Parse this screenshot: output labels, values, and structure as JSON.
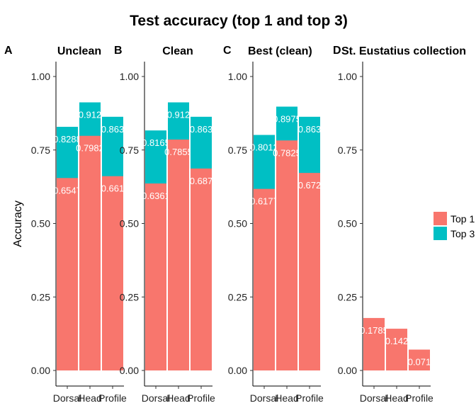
{
  "figure": {
    "title": "Test accuracy (top 1 and top 3)",
    "ylabel": "Accuracy"
  },
  "legend": {
    "entries": [
      {
        "label": "Top 1",
        "color": "#F8766D"
      },
      {
        "label": "Top 3",
        "color": "#00BFC4"
      }
    ]
  },
  "chart_data": [
    {
      "type": "bar",
      "letter": "A",
      "title": "Unclean",
      "categories": [
        "Dorsal",
        "Head",
        "Profile"
      ],
      "series": [
        {
          "name": "Top 1",
          "values": [
            0.6547,
            0.7982,
            0.661
          ],
          "labels": [
            "0.6547",
            "0.7982",
            "0.661"
          ]
        },
        {
          "name": "Top 3",
          "values": [
            0.8288,
            0.912,
            0.863
          ],
          "labels": [
            "0.8288",
            "0.912",
            "0.863"
          ]
        }
      ],
      "ylabel": "Accuracy",
      "ylim": [
        0,
        1.05
      ],
      "yticks": [
        "0.00",
        "0.25",
        "0.50",
        "0.75",
        "1.00"
      ]
    },
    {
      "type": "bar",
      "letter": "B",
      "title": "Clean",
      "categories": [
        "Dorsal",
        "Head",
        "Profile"
      ],
      "series": [
        {
          "name": "Top 1",
          "values": [
            0.6361,
            0.7855,
            0.687
          ],
          "labels": [
            "0.6361",
            "0.7855",
            "0.687"
          ]
        },
        {
          "name": "Top 3",
          "values": [
            0.8165,
            0.912,
            0.863
          ],
          "labels": [
            "0.8165",
            "0.912",
            "0.863"
          ]
        }
      ],
      "ylim": [
        0,
        1.05
      ],
      "yticks": [
        "0.00",
        "0.25",
        "0.50",
        "0.75",
        "1.00"
      ]
    },
    {
      "type": "bar",
      "letter": "C",
      "title": "Best (clean)",
      "categories": [
        "Dorsal",
        "Head",
        "Profile"
      ],
      "series": [
        {
          "name": "Top 1",
          "values": [
            0.6177,
            0.7825,
            0.672
          ],
          "labels": [
            "0.6177",
            "0.7825",
            "0.672"
          ]
        },
        {
          "name": "Top 3",
          "values": [
            0.8012,
            0.8975,
            0.863
          ],
          "labels": [
            "0.8012",
            "0.8975",
            "0.863"
          ]
        }
      ],
      "ylim": [
        0,
        1.05
      ],
      "yticks": [
        "0.00",
        "0.25",
        "0.50",
        "0.75",
        "1.00"
      ]
    },
    {
      "type": "bar",
      "letter": "D",
      "title": "St. Eustatius collection",
      "categories": [
        "Dorsal",
        "Head",
        "Profile"
      ],
      "series": [
        {
          "name": "Top 1",
          "values": [
            0.1785,
            0.142,
            0.071
          ],
          "labels": [
            "0.1785",
            "0.142",
            "0.071"
          ]
        }
      ],
      "ylim": [
        0,
        1.05
      ],
      "yticks": [
        "0.00",
        "0.25",
        "0.50",
        "0.75",
        "1.00"
      ]
    }
  ]
}
